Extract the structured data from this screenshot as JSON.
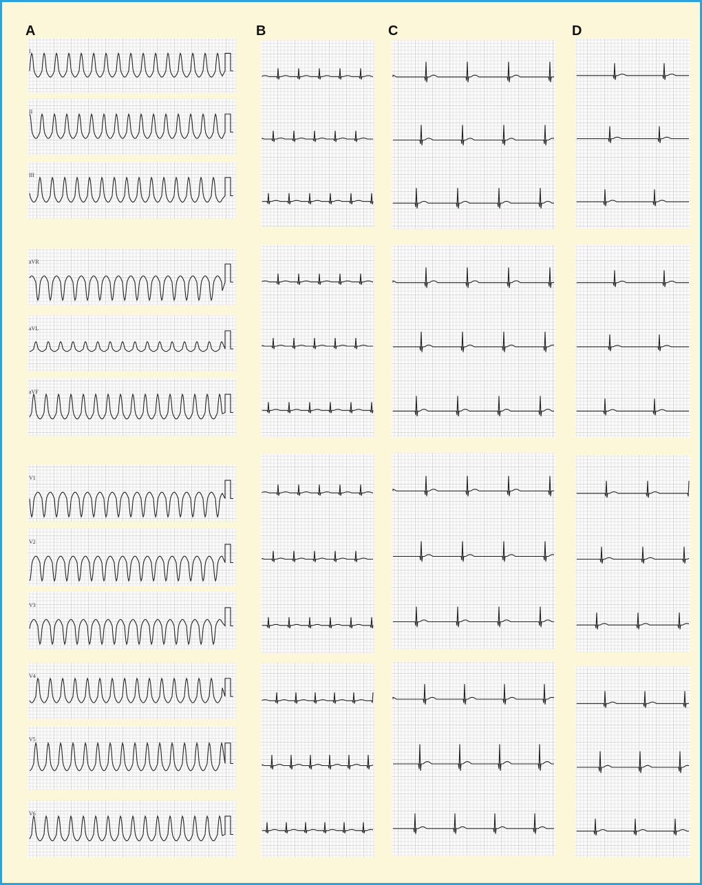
{
  "panels": [
    {
      "label": "A",
      "leads": [
        "I",
        "II",
        "III",
        "aVR",
        "aVL",
        "aVF",
        "V1",
        "V2",
        "V3",
        "V4",
        "V5",
        "V6"
      ]
    },
    {
      "label": "B"
    },
    {
      "label": "C"
    },
    {
      "label": "D"
    }
  ]
}
